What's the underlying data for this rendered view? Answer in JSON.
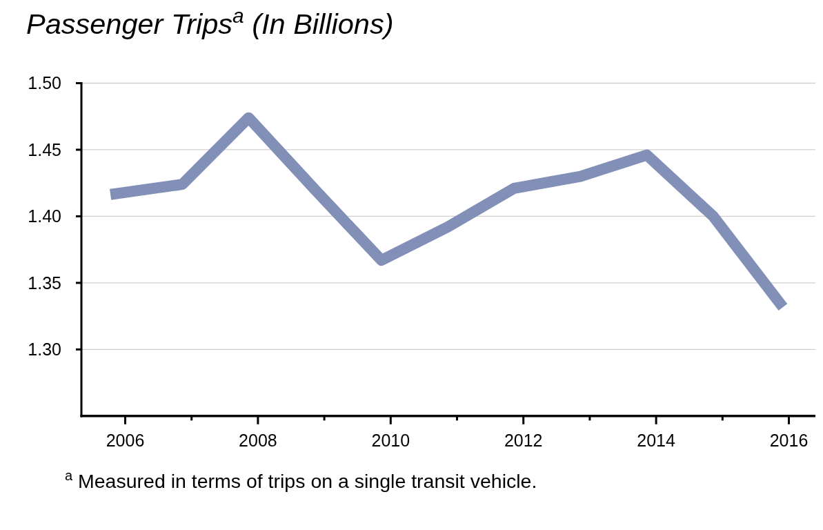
{
  "chart_data": {
    "type": "line",
    "title": "Passenger Trips$^{a}$ (In Billions)",
    "x": [
      2005.86,
      2006.86,
      2007.86,
      2008.86,
      2009.86,
      2010.86,
      2011.86,
      2012.86,
      2013.86,
      2014.86,
      2015.86
    ],
    "series": [
      {
        "color": "#8290b8",
        "values": [
          1.417,
          1.424,
          1.474,
          1.42,
          1.367,
          1.392,
          1.421,
          1.43,
          1.446,
          1.4,
          1.335
        ]
      }
    ],
    "xlim": [
      2005.34,
      2016.4
    ],
    "xticks": [
      2006,
      {
        "value": 2007,
        "label": null
      },
      2008,
      {
        "value": 2009,
        "label": null
      },
      2010,
      {
        "value": 2011,
        "label": null
      },
      2012,
      {
        "value": 2013,
        "label": null
      },
      2014,
      {
        "value": 2015,
        "label": null
      },
      2016
    ],
    "ylim": [
      1.25,
      1.5
    ],
    "yticks": [
      {
        "value": 1.3,
        "label": "1.30"
      },
      {
        "value": 1.35,
        "label": "1.35"
      },
      {
        "value": 1.4,
        "label": "1.40"
      },
      {
        "value": 1.45,
        "label": "1.45"
      },
      {
        "value": 1.5,
        "label": "1.50"
      }
    ],
    "grid": "y",
    "line_style": "solid",
    "annotations": [
      "$^{a}$ Measured in terms of trips on a single transit vehicle."
    ]
  }
}
